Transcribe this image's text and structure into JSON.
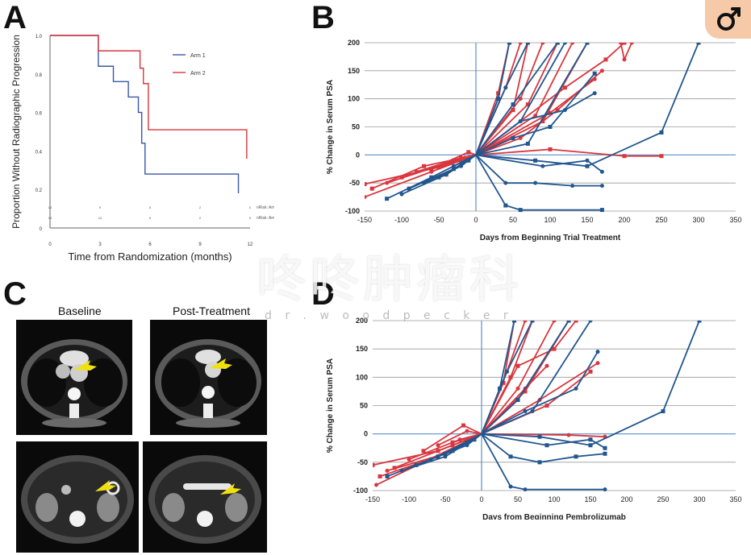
{
  "panels": {
    "a": {
      "letter": "A"
    },
    "b": {
      "letter": "B"
    },
    "c": {
      "letter": "C",
      "baseline_label": "Baseline",
      "post_label": "Post-Treatment"
    },
    "d": {
      "letter": "D"
    }
  },
  "watermark": {
    "chinese": "咚咚肿瘤科",
    "latin": "d r . w o o d p e c k e r"
  },
  "chart_data": [
    {
      "id": "A",
      "type": "line",
      "step": true,
      "xlabel": "Time from Randomization (months)",
      "ylabel": "Proportion Without Radiographic Progression",
      "xlim": [
        0,
        12
      ],
      "ylim": [
        0,
        1.0
      ],
      "xticks": [
        "0",
        "3",
        "6",
        "9",
        "12"
      ],
      "yticks": [
        "0",
        "0.2",
        "0.4",
        "0.6",
        "0.8",
        "1.0"
      ],
      "legend_position": "top-right",
      "grid": false,
      "series": [
        {
          "name": "Arm 1",
          "color": "#3a56a8",
          "x": [
            0,
            2.7,
            2.9,
            3.8,
            4.7,
            5.3,
            5.5,
            5.7,
            11.1,
            11.3
          ],
          "y": [
            1.0,
            1.0,
            0.84,
            0.76,
            0.68,
            0.6,
            0.44,
            0.28,
            0.28,
            0.18
          ]
        },
        {
          "name": "Arm 2",
          "color": "#d9363e",
          "x": [
            0,
            2.7,
            2.9,
            5.1,
            5.4,
            5.6,
            5.9,
            11.5,
            11.8
          ],
          "y": [
            1.0,
            1.0,
            0.92,
            0.92,
            0.83,
            0.75,
            0.51,
            0.51,
            0.36
          ]
        }
      ],
      "risk_table": {
        "rows": [
          {
            "label": "nRisk: Arm 2",
            "values": [
              "13",
              "9",
              "6",
              "2",
              "0"
            ]
          },
          {
            "label": "nRisk: Arm 1",
            "values": [
              "13",
              "10",
              "5",
              "2",
              "0"
            ]
          }
        ]
      }
    },
    {
      "id": "B",
      "type": "line",
      "xlabel": "Days from Beginning Trial Treatment",
      "ylabel": "% Change in Serum PSA",
      "xlim": [
        -150,
        350
      ],
      "ylim": [
        -100,
        200
      ],
      "xticks": [
        "-150",
        "-100",
        "-50",
        "0",
        "50",
        "100",
        "150",
        "200",
        "250",
        "300",
        "350"
      ],
      "yticks": [
        "-100",
        "-50",
        "0",
        "50",
        "100",
        "150",
        "200"
      ],
      "grid": true,
      "series_colors": {
        "red": "#d9363e",
        "blue": "#21568f"
      },
      "series": [
        {
          "color": "red",
          "x": [
            -150,
            -50,
            0,
            30,
            45
          ],
          "y": [
            -52,
            -22,
            0,
            110,
            200
          ]
        },
        {
          "color": "red",
          "x": [
            -150,
            -60,
            0,
            40,
            60
          ],
          "y": [
            -75,
            -30,
            0,
            120,
            200
          ]
        },
        {
          "color": "red",
          "x": [
            -140,
            -70,
            0,
            50,
            70
          ],
          "y": [
            -60,
            -20,
            0,
            80,
            200
          ]
        },
        {
          "color": "red",
          "x": [
            -120,
            -40,
            0,
            60,
            90
          ],
          "y": [
            -50,
            -15,
            0,
            100,
            200
          ]
        },
        {
          "color": "red",
          "x": [
            -100,
            -30,
            0,
            70,
            110
          ],
          "y": [
            -40,
            -10,
            0,
            90,
            200
          ]
        },
        {
          "color": "red",
          "x": [
            -80,
            -20,
            0,
            80,
            130
          ],
          "y": [
            -30,
            -5,
            0,
            70,
            200
          ]
        },
        {
          "color": "red",
          "x": [
            -60,
            -10,
            0,
            90,
            150
          ],
          "y": [
            -25,
            5,
            0,
            60,
            200
          ]
        },
        {
          "color": "red",
          "x": [
            -45,
            -15,
            0,
            100,
            160
          ],
          "y": [
            -20,
            -5,
            0,
            75,
            135
          ]
        },
        {
          "color": "red",
          "x": [
            -30,
            0,
            100,
            200,
            250
          ],
          "y": [
            -10,
            0,
            10,
            -2,
            -2
          ]
        },
        {
          "color": "red",
          "x": [
            -20,
            0,
            60,
            110,
            170
          ],
          "y": [
            -8,
            0,
            30,
            80,
            150
          ]
        },
        {
          "color": "red",
          "x": [
            -40,
            0,
            120,
            175,
            200
          ],
          "y": [
            -35,
            0,
            120,
            170,
            200
          ]
        },
        {
          "color": "red",
          "x": [
            195,
            200,
            210
          ],
          "y": [
            200,
            170,
            200
          ]
        },
        {
          "color": "blue",
          "x": [
            -120,
            -60,
            0,
            30,
            45
          ],
          "y": [
            -78,
            -40,
            0,
            100,
            200
          ]
        },
        {
          "color": "blue",
          "x": [
            -100,
            -40,
            0,
            40,
            70
          ],
          "y": [
            -70,
            -35,
            0,
            120,
            200
          ]
        },
        {
          "color": "blue",
          "x": [
            -90,
            -30,
            0,
            50,
            110
          ],
          "y": [
            -60,
            -25,
            0,
            90,
            200
          ]
        },
        {
          "color": "blue",
          "x": [
            -70,
            -20,
            0,
            60,
            120
          ],
          "y": [
            -50,
            -20,
            0,
            60,
            200
          ]
        },
        {
          "color": "blue",
          "x": [
            -50,
            -10,
            0,
            70,
            150
          ],
          "y": [
            -40,
            -10,
            0,
            20,
            200
          ]
        },
        {
          "color": "blue",
          "x": [
            -30,
            0,
            40,
            80,
            130,
            170
          ],
          "y": [
            -20,
            0,
            -50,
            -50,
            -55,
            -55
          ]
        },
        {
          "color": "blue",
          "x": [
            0,
            40,
            60,
            170
          ],
          "y": [
            0,
            -90,
            -98,
            -98
          ]
        },
        {
          "color": "blue",
          "x": [
            -20,
            0,
            90,
            150,
            170
          ],
          "y": [
            -15,
            0,
            -20,
            -10,
            -30
          ]
        },
        {
          "color": "blue",
          "x": [
            0,
            50,
            100,
            160
          ],
          "y": [
            0,
            30,
            50,
            145
          ]
        },
        {
          "color": "blue",
          "x": [
            0,
            60,
            120,
            160
          ],
          "y": [
            0,
            60,
            80,
            110
          ]
        },
        {
          "color": "blue",
          "x": [
            0,
            80,
            150,
            250,
            300
          ],
          "y": [
            0,
            -10,
            -20,
            40,
            200
          ]
        }
      ]
    },
    {
      "id": "D",
      "type": "line",
      "xlabel": "Days from Beginning  Pembrolizumab",
      "ylabel": "% Change in Serum PSA",
      "xlim": [
        -150,
        350
      ],
      "ylim": [
        -100,
        200
      ],
      "xticks": [
        "-150",
        "-100",
        "-50",
        "0",
        "50",
        "100",
        "150",
        "200",
        "250",
        "300",
        "350"
      ],
      "yticks": [
        "-100",
        "-50",
        "0",
        "50",
        "100",
        "150",
        "200"
      ],
      "grid": true,
      "series_colors": {
        "red": "#d9363e",
        "blue": "#21568f"
      },
      "series": [
        {
          "color": "red",
          "x": [
            -150,
            -60,
            0,
            30,
            45
          ],
          "y": [
            -55,
            -30,
            0,
            90,
            200
          ]
        },
        {
          "color": "red",
          "x": [
            -145,
            -80,
            0,
            35,
            60
          ],
          "y": [
            -90,
            -50,
            0,
            110,
            200
          ]
        },
        {
          "color": "red",
          "x": [
            -140,
            -60,
            0,
            40,
            70
          ],
          "y": [
            -75,
            -40,
            0,
            100,
            200
          ]
        },
        {
          "color": "red",
          "x": [
            -130,
            -50,
            0,
            50,
            100
          ],
          "y": [
            -65,
            -35,
            0,
            80,
            200
          ]
        },
        {
          "color": "red",
          "x": [
            -120,
            -40,
            0,
            60,
            120
          ],
          "y": [
            -60,
            -20,
            0,
            75,
            200
          ]
        },
        {
          "color": "red",
          "x": [
            -100,
            -30,
            0,
            80,
            160
          ],
          "y": [
            -45,
            -10,
            0,
            60,
            125
          ]
        },
        {
          "color": "red",
          "x": [
            -80,
            -25,
            0,
            90,
            150
          ],
          "y": [
            -30,
            15,
            0,
            50,
            110
          ]
        },
        {
          "color": "red",
          "x": [
            -60,
            -20,
            0,
            120,
            170
          ],
          "y": [
            -20,
            5,
            0,
            -2,
            -5
          ]
        },
        {
          "color": "red",
          "x": [
            -40,
            0,
            50,
            100,
            130
          ],
          "y": [
            -15,
            0,
            120,
            150,
            200
          ]
        },
        {
          "color": "red",
          "x": [
            -30,
            0,
            60,
            90
          ],
          "y": [
            -10,
            0,
            80,
            120
          ]
        },
        {
          "color": "blue",
          "x": [
            -130,
            -60,
            0,
            25,
            45
          ],
          "y": [
            -75,
            -40,
            0,
            80,
            200
          ]
        },
        {
          "color": "blue",
          "x": [
            -110,
            -50,
            0,
            35,
            70
          ],
          "y": [
            -65,
            -40,
            0,
            110,
            200
          ]
        },
        {
          "color": "blue",
          "x": [
            -90,
            -40,
            0,
            50,
            120
          ],
          "y": [
            -55,
            -30,
            0,
            60,
            200
          ]
        },
        {
          "color": "blue",
          "x": [
            -70,
            -20,
            0,
            70,
            150
          ],
          "y": [
            -45,
            -20,
            0,
            40,
            200
          ]
        },
        {
          "color": "blue",
          "x": [
            -50,
            -10,
            0,
            40,
            80,
            130,
            170
          ],
          "y": [
            -35,
            -10,
            0,
            -40,
            -50,
            -40,
            -35
          ]
        },
        {
          "color": "blue",
          "x": [
            0,
            40,
            60,
            170
          ],
          "y": [
            0,
            -93,
            -98,
            -98
          ]
        },
        {
          "color": "blue",
          "x": [
            -20,
            0,
            90,
            150,
            170
          ],
          "y": [
            -15,
            0,
            -20,
            -10,
            -25
          ]
        },
        {
          "color": "blue",
          "x": [
            0,
            60,
            130,
            160
          ],
          "y": [
            0,
            40,
            80,
            145
          ]
        },
        {
          "color": "blue",
          "x": [
            0,
            80,
            150,
            250,
            300
          ],
          "y": [
            0,
            -5,
            -20,
            40,
            200
          ]
        }
      ]
    }
  ]
}
